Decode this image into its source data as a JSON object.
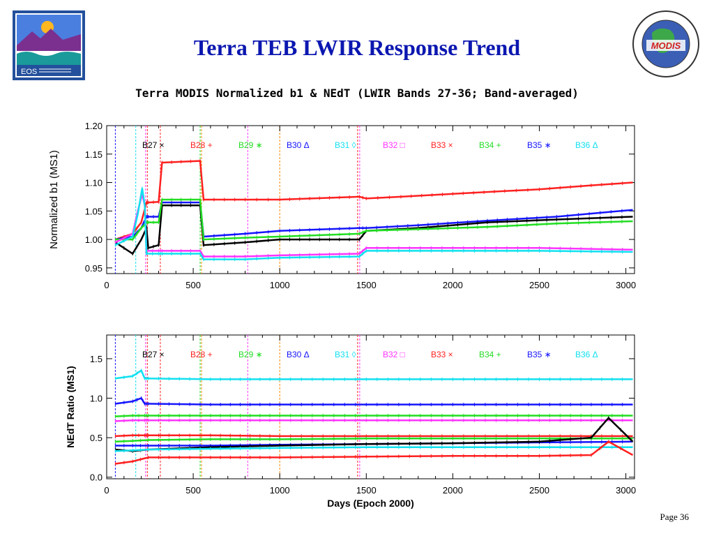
{
  "slide": {
    "title": "Terra TEB LWIR Response Trend",
    "page": "Page 36",
    "logos": {
      "left_text": "EOS",
      "right_text": "MODIS"
    }
  },
  "chart_data": {
    "title": "Terra MODIS Normalized b1 & NEdT (LWIR Bands 27-36; Band-averaged)",
    "legend": [
      "B27 ×",
      "B28 +",
      "B29 ∗",
      "B30 Δ",
      "B31 ◊",
      "B32 □",
      "B33 ×",
      "B34 +",
      "B35 ∗",
      "B36 Δ"
    ],
    "legend_colors": [
      "#000000",
      "#ff2020",
      "#22dd22",
      "#1515ff",
      "#11e0f0",
      "#ff33ff",
      "#ff2020",
      "#22dd22",
      "#1515ff",
      "#11e0f0"
    ],
    "vlines": [
      {
        "x": 50,
        "color": "#1515ff"
      },
      {
        "x": 168,
        "color": "#11e0f0"
      },
      {
        "x": 225,
        "color": "#ff33ff"
      },
      {
        "x": 235,
        "color": "#ff2020"
      },
      {
        "x": 310,
        "color": "#ff2020"
      },
      {
        "x": 540,
        "color": "#22dd22"
      },
      {
        "x": 548,
        "color": "#ff8800"
      },
      {
        "x": 815,
        "color": "#ff33ff"
      },
      {
        "x": 1000,
        "color": "#ff8800"
      },
      {
        "x": 1450,
        "color": "#ff2020"
      },
      {
        "x": 1462,
        "color": "#ff33ff"
      }
    ],
    "charts": [
      {
        "type": "line",
        "ylabel": "Normalized b1 (MS1)",
        "xlabel": "",
        "xlim": [
          0,
          3050
        ],
        "ylim": [
          0.94,
          1.2
        ],
        "yticks": [
          "0.95",
          "1.00",
          "1.05",
          "1.10",
          "1.15",
          "1.20"
        ],
        "xticks": [
          "0",
          "500",
          "1000",
          "1500",
          "2000",
          "2500",
          "3000"
        ],
        "series": [
          {
            "color": "#ff2020",
            "x": [
              50,
              150,
              200,
              230,
              240,
              300,
              320,
              540,
              560,
              800,
              1000,
              1460,
              1500,
              1700,
              2000,
              2300,
              2500,
              2800,
              3040
            ],
            "y": [
              1.0,
              1.01,
              1.03,
              1.065,
              1.065,
              1.066,
              1.135,
              1.138,
              1.07,
              1.07,
              1.07,
              1.075,
              1.072,
              1.075,
              1.08,
              1.085,
              1.088,
              1.095,
              1.1
            ]
          },
          {
            "color": "#1515ff",
            "x": [
              50,
              150,
              200,
              230,
              240,
              300,
              320,
              540,
              560,
              800,
              1000,
              1460,
              1500,
              1800,
              2200,
              2600,
              3040
            ],
            "y": [
              1.0,
              1.005,
              1.02,
              1.04,
              1.04,
              1.04,
              1.065,
              1.065,
              1.005,
              1.01,
              1.015,
              1.02,
              1.02,
              1.025,
              1.033,
              1.04,
              1.052
            ]
          },
          {
            "color": "#000000",
            "x": [
              50,
              150,
              200,
              230,
              240,
              300,
              320,
              540,
              560,
              800,
              1000,
              1460,
              1500,
              1800,
              2200,
              2600,
              3040
            ],
            "y": [
              0.995,
              0.975,
              1.0,
              1.02,
              0.985,
              0.99,
              1.06,
              1.06,
              0.99,
              0.995,
              1.0,
              1.0,
              1.015,
              1.02,
              1.03,
              1.035,
              1.04
            ]
          },
          {
            "color": "#22dd22",
            "x": [
              50,
              150,
              200,
              230,
              240,
              300,
              320,
              540,
              560,
              800,
              1000,
              1460,
              1500,
              1800,
              2200,
              2600,
              3040
            ],
            "y": [
              1.0,
              1.0,
              1.02,
              1.03,
              1.03,
              1.03,
              1.07,
              1.07,
              1.0,
              1.003,
              1.005,
              1.01,
              1.015,
              1.018,
              1.022,
              1.028,
              1.032
            ]
          },
          {
            "color": "#ff33ff",
            "x": [
              50,
              150,
              180,
              205,
              220,
              230,
              300,
              320,
              540,
              560,
              800,
              1000,
              1460,
              1500,
              2000,
              2500,
              3040
            ],
            "y": [
              0.995,
              1.01,
              1.05,
              1.08,
              1.06,
              0.98,
              0.98,
              0.98,
              0.98,
              0.97,
              0.97,
              0.972,
              0.975,
              0.985,
              0.985,
              0.985,
              0.982
            ]
          },
          {
            "color": "#11e0f0",
            "x": [
              50,
              150,
              180,
              205,
              220,
              230,
              300,
              320,
              540,
              560,
              800,
              1000,
              1460,
              1500,
              2000,
              2500,
              3040
            ],
            "y": [
              0.99,
              1.005,
              1.045,
              1.09,
              1.06,
              0.975,
              0.975,
              0.975,
              0.975,
              0.965,
              0.965,
              0.968,
              0.97,
              0.98,
              0.98,
              0.98,
              0.978
            ]
          }
        ]
      },
      {
        "type": "line",
        "ylabel": "NEdT Ratio (MS1)",
        "xlabel": "Days (Epoch 2000)",
        "xlim": [
          0,
          3050
        ],
        "ylim": [
          -0.02,
          1.8
        ],
        "yticks": [
          "0.0",
          "0.5",
          "1.0",
          "1.5"
        ],
        "xticks": [
          "0",
          "500",
          "1000",
          "1500",
          "2000",
          "2500",
          "3000"
        ],
        "series": [
          {
            "color": "#11e0f0",
            "x": [
              50,
              150,
              200,
              220,
              240,
              600,
              1000,
              1500,
              2000,
              2500,
              3040
            ],
            "y": [
              1.25,
              1.28,
              1.35,
              1.25,
              1.25,
              1.24,
              1.24,
              1.24,
              1.24,
              1.24,
              1.24
            ]
          },
          {
            "color": "#1515ff",
            "x": [
              50,
              150,
              200,
              220,
              240,
              600,
              1000,
              1500,
              2000,
              2500,
              3040
            ],
            "y": [
              0.93,
              0.96,
              1.0,
              0.93,
              0.93,
              0.92,
              0.92,
              0.92,
              0.92,
              0.92,
              0.92
            ]
          },
          {
            "color": "#22dd22",
            "x": [
              50,
              150,
              220,
              240,
              600,
              1000,
              1500,
              2000,
              2500,
              3040
            ],
            "y": [
              0.77,
              0.78,
              0.78,
              0.78,
              0.78,
              0.78,
              0.78,
              0.78,
              0.78,
              0.78
            ]
          },
          {
            "color": "#ff33ff",
            "x": [
              50,
              150,
              220,
              240,
              600,
              1000,
              1500,
              2000,
              2500,
              3040
            ],
            "y": [
              0.71,
              0.72,
              0.72,
              0.72,
              0.72,
              0.72,
              0.72,
              0.72,
              0.72,
              0.72
            ]
          },
          {
            "color": "#ff2020",
            "x": [
              50,
              150,
              220,
              240,
              600,
              1000,
              1500,
              2000,
              2500,
              3040
            ],
            "y": [
              0.52,
              0.53,
              0.53,
              0.53,
              0.53,
              0.52,
              0.52,
              0.52,
              0.52,
              0.52
            ]
          },
          {
            "color": "#22dd22",
            "x": [
              50,
              150,
              240,
              600,
              1000,
              1500,
              2000,
              2500,
              3040
            ],
            "y": [
              0.45,
              0.46,
              0.47,
              0.48,
              0.48,
              0.49,
              0.49,
              0.49,
              0.49
            ]
          },
          {
            "color": "#1515ff",
            "x": [
              50,
              150,
              240,
              600,
              1000,
              1500,
              2000,
              2500,
              3040
            ],
            "y": [
              0.4,
              0.4,
              0.4,
              0.4,
              0.41,
              0.42,
              0.43,
              0.44,
              0.45
            ]
          },
          {
            "color": "#000000",
            "x": [
              50,
              150,
              240,
              600,
              1000,
              1500,
              2000,
              2500,
              2800,
              2900,
              3040
            ],
            "y": [
              0.35,
              0.33,
              0.35,
              0.38,
              0.4,
              0.42,
              0.43,
              0.45,
              0.5,
              0.75,
              0.45
            ]
          },
          {
            "color": "#11e0f0",
            "x": [
              50,
              150,
              240,
              600,
              1000,
              1500,
              2000,
              2500,
              3040
            ],
            "y": [
              0.33,
              0.34,
              0.35,
              0.36,
              0.37,
              0.38,
              0.38,
              0.38,
              0.38
            ]
          },
          {
            "color": "#ff2020",
            "x": [
              50,
              150,
              240,
              600,
              1000,
              1500,
              2000,
              2500,
              2800,
              2900,
              3040
            ],
            "y": [
              0.17,
              0.2,
              0.25,
              0.25,
              0.25,
              0.26,
              0.27,
              0.27,
              0.28,
              0.45,
              0.28
            ]
          }
        ]
      }
    ]
  }
}
